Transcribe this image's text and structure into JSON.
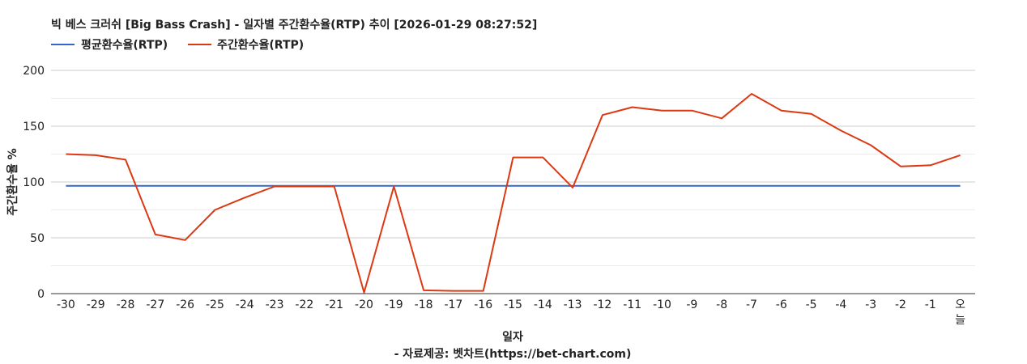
{
  "chart_data": {
    "type": "line",
    "title": "빅 베스 크러쉬 [Big Bass Crash] - 일자별 주간환수율(RTP) 추이 [2026-01-29 08:27:52]",
    "xlabel": "일자",
    "ylabel": "주간환수율 %",
    "source": "- 자료제공: 벳차트(https://bet-chart.com)",
    "categories": [
      "-30",
      "-29",
      "-28",
      "-27",
      "-26",
      "-25",
      "-24",
      "-23",
      "-22",
      "-21",
      "-20",
      "-19",
      "-18",
      "-17",
      "-16",
      "-15",
      "-14",
      "-13",
      "-12",
      "-11",
      "-10",
      "-9",
      "-8",
      "-7",
      "-6",
      "-5",
      "-4",
      "-3",
      "-2",
      "-1",
      "오늘"
    ],
    "ylim": [
      0,
      200
    ],
    "yticks": [
      0,
      50,
      100,
      150,
      200
    ],
    "grid": true,
    "legend_position": "top-left",
    "series": [
      {
        "name": "평균환수율(RTP)",
        "color": "#3366cc",
        "values": [
          96.5,
          96.5,
          96.5,
          96.5,
          96.5,
          96.5,
          96.5,
          96.5,
          96.5,
          96.5,
          96.5,
          96.5,
          96.5,
          96.5,
          96.5,
          96.5,
          96.5,
          96.5,
          96.5,
          96.5,
          96.5,
          96.5,
          96.5,
          96.5,
          96.5,
          96.5,
          96.5,
          96.5,
          96.5,
          96.5,
          96.5
        ]
      },
      {
        "name": "주간환수율(RTP)",
        "color": "#dc3912",
        "values": [
          125,
          124,
          120,
          53,
          48,
          75,
          86,
          96,
          96,
          96,
          1,
          96,
          3,
          2.5,
          2.5,
          122,
          122,
          95,
          160,
          167,
          164,
          164,
          157,
          179,
          164,
          161,
          146,
          133,
          114,
          115,
          124
        ]
      }
    ]
  }
}
